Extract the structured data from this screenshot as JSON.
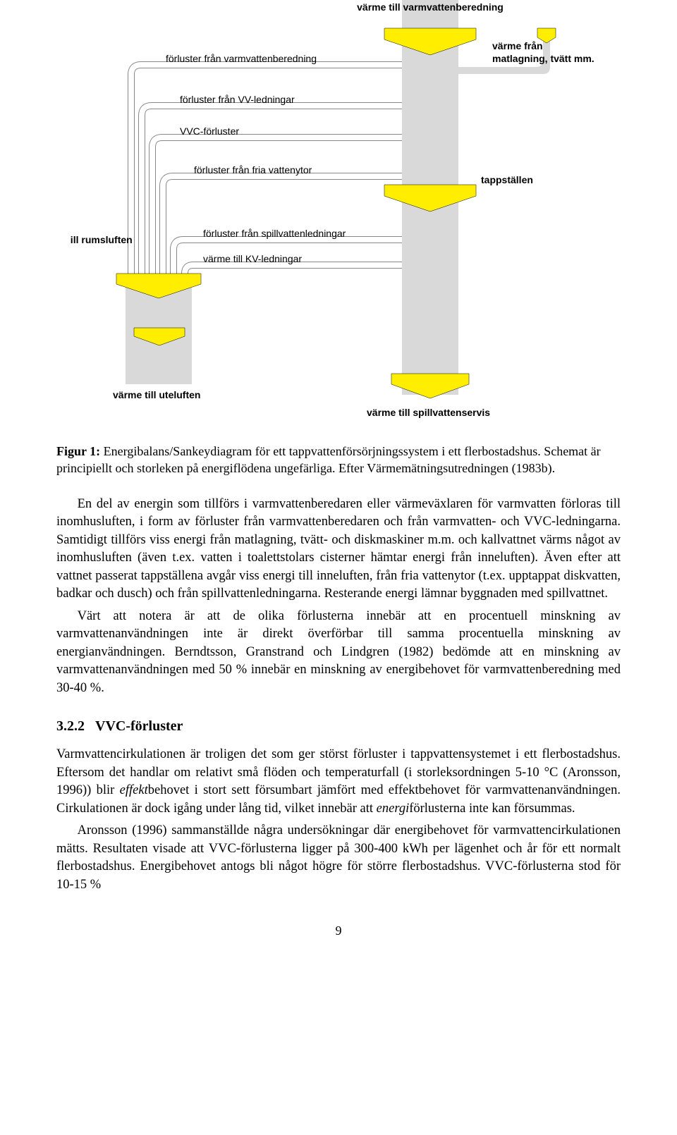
{
  "diagram": {
    "type": "sankey",
    "background": "#ffffff",
    "pipe_outer_color": "#888888",
    "pipe_inner_color": "#ffffff",
    "grey_fill": "#d9d9d9",
    "yellow_fill": "#ffee00",
    "border_color": "#000000",
    "label_fontsize": 14,
    "bold_label_fontsize": 14,
    "labels": {
      "top_center_bold": "värme till varmvattenberedning",
      "left_1": "förluster från varmvattenberedning",
      "right_top_bold_1": "värme från",
      "right_top_bold_2": "matlagning, tvätt mm.",
      "left_2": "förluster från VV-ledningar",
      "left_3": "VVC-förluster",
      "left_4": "förluster från fria vattenytor",
      "right_mid_bold": "tappställen",
      "left_far_bold": "värme till rumsluften",
      "mid_1": "förluster från spillvattenledningar",
      "mid_2": "värme till KV-ledningar",
      "bottom_left_bold": "värme till uteluften",
      "bottom_right_bold": "värme till spillvattenservis"
    }
  },
  "figure_caption_lead": "Figur 1:",
  "figure_caption": "Energibalans/Sankeydiagram för ett tappvattenförsörjningssystem i ett flerbostadshus. Schemat är principiellt och storleken på energiflödena ungefärliga. Efter Värmemätningsutredningen (1983b).",
  "para1": "En del av energin som tillförs i varmvattenberedaren eller värmeväxlaren för varmvatten förloras till inomhusluften, i form av förluster från varmvattenberedaren och från varmvatten- och VVC-ledningarna. Samtidigt tillförs viss energi från matlagning, tvätt- och diskmaskiner m.m. och kallvattnet värms något av inomhusluften (även t.ex. vatten i toalettstolars cisterner hämtar energi från inneluften). Även efter att vattnet passerat tappställena avgår viss energi till inneluften, från fria vattenytor (t.ex. upptappat diskvatten, badkar och dusch) och från spillvattenledningarna. Resterande energi lämnar byggnaden med spillvattnet.",
  "para2": "Värt att notera är att de olika förlusterna innebär att en procentuell minskning av varmvattenanvändningen inte är direkt överförbar till samma procentuella minskning av energianvändningen. Berndtsson, Granstrand och Lindgren (1982) bedömde att en minskning av varmvattenanvändningen med 50 % innebär en minskning av energibehovet för varmvattenberedning med 30-40 %.",
  "subheading_num": "3.2.2",
  "subheading_text": "VVC-förluster",
  "para3_html": "Varmvattencirkulationen är troligen det som ger störst förluster i tappvattensystemet i ett flerbostadshus. Eftersom det handlar om relativt små flöden och temperaturfall (i storleksordningen 5-10 °C (Aronsson, 1996)) blir <em>effekt</em>behovet i stort sett försumbart jämfört med effektbehovet för varmvattenanvändningen. Cirkulationen är dock igång under lång tid, vilket innebär att <em>energi</em>förlusterna inte kan försummas.",
  "para4": "Aronsson (1996) sammanställde några undersökningar där energibehovet för varmvattencirkulationen mätts. Resultaten visade att VVC-förlusterna ligger på 300-400 kWh per lägenhet och år för ett normalt flerbostadshus. Energibehovet antogs bli något högre för större flerbostadshus. VVC-förlusterna stod för 10-15 %",
  "page_number": "9"
}
